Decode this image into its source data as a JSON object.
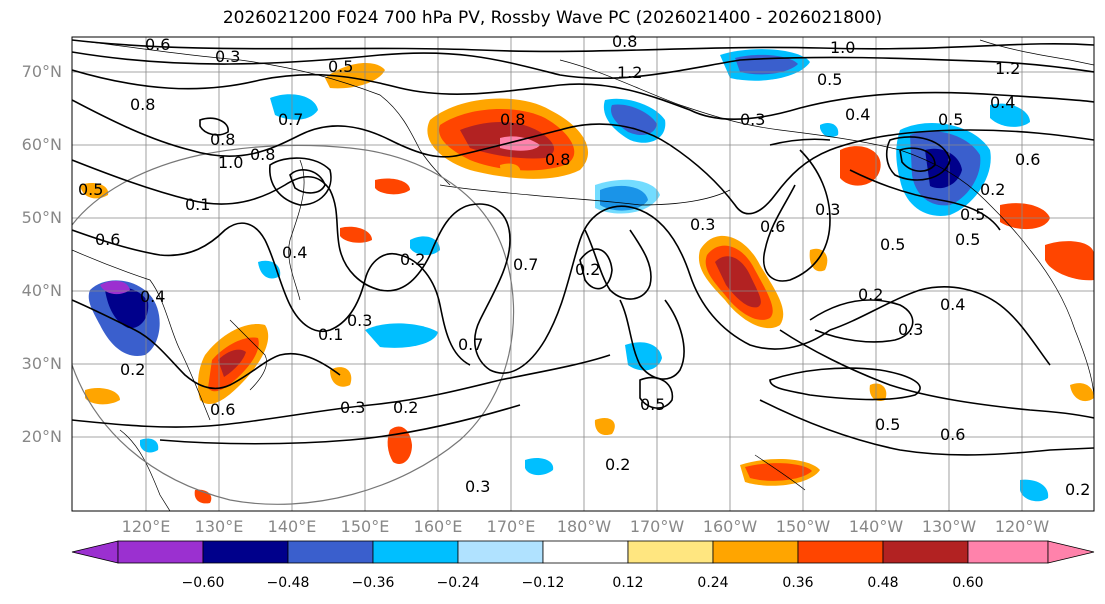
{
  "title": "2026021200 F024 700 hPa PV, Rossby Wave PC (2026021400 - 2026021800)",
  "lat_labels": [
    "70°N",
    "60°N",
    "50°N",
    "40°N",
    "30°N",
    "20°N"
  ],
  "lon_labels": [
    "120°E",
    "130°E",
    "140°E",
    "150°E",
    "160°E",
    "170°E",
    "180°W",
    "170°W",
    "160°W",
    "150°W",
    "140°W",
    "130°W",
    "120°W"
  ],
  "colorbar": {
    "ticks": [
      "−0.60",
      "−0.48",
      "−0.36",
      "−0.24",
      "−0.12",
      "0.12",
      "0.24",
      "0.36",
      "0.48",
      "0.60"
    ],
    "colors": [
      "#9b30d0",
      "#00008b",
      "#3a5fcd",
      "#00bfff",
      "#b0e2ff",
      "#ffffff",
      "#ffe680",
      "#ffa500",
      "#ff4500",
      "#b22222",
      "#ff82ab"
    ]
  },
  "contour_labels": [
    "0.8",
    "1.0",
    "0.8",
    "1.2",
    "1.2",
    "0.5",
    "0.3",
    "0.5",
    "0.4",
    "0.4",
    "0.5",
    "0.6",
    "0.8",
    "0.7",
    "1.0",
    "0.8",
    "0.5",
    "0.3",
    "0.6",
    "0.1",
    "0.8",
    "0.3",
    "0.2",
    "0.5",
    "0.2",
    "0.6",
    "0.3",
    "0.2",
    "0.5",
    "0.4",
    "0.2",
    "0.7",
    "0.3",
    "0.7",
    "0.4",
    "0.3",
    "0.2",
    "0.5",
    "0.5",
    "0.6",
    "0.3",
    "0.2",
    "0.2",
    "0.6",
    "0.1",
    "0.4",
    "0.5",
    "0.2",
    "0.6",
    "0.8"
  ]
}
